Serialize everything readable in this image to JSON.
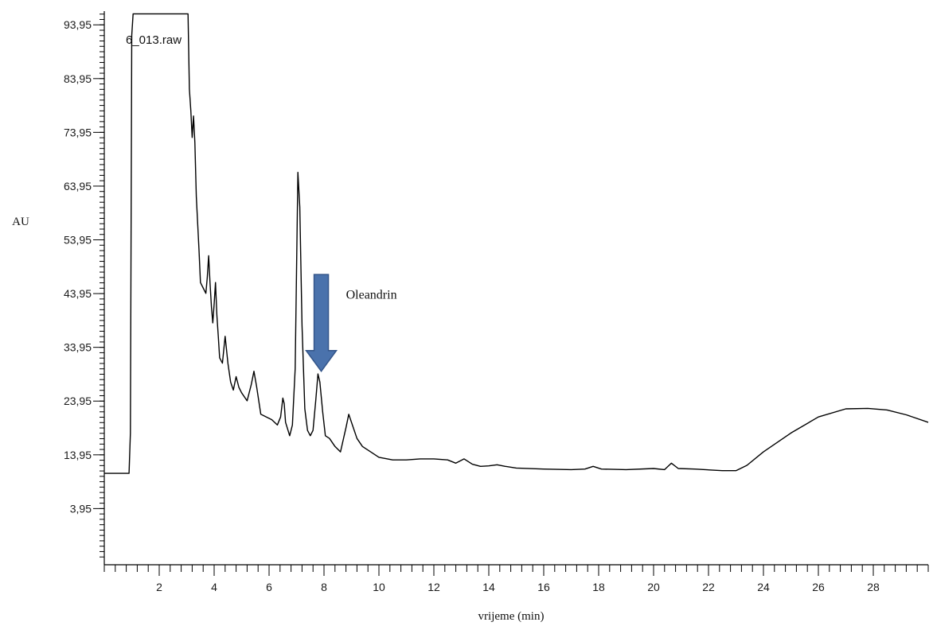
{
  "chart_data": {
    "type": "line",
    "trace_label": "6_013.raw",
    "xlabel": "vrijeme (min)",
    "ylabel": "AU",
    "xlim": [
      0,
      30
    ],
    "ylim": [
      -6.5,
      96.5
    ],
    "x_ticks": [
      2,
      4,
      6,
      8,
      10,
      12,
      14,
      16,
      18,
      20,
      22,
      24,
      26,
      28
    ],
    "x_tick_labels": [
      "2",
      "4",
      "6",
      "8",
      "10",
      "12",
      "14",
      "16",
      "18",
      "20",
      "22",
      "24",
      "26",
      "28"
    ],
    "y_ticks": [
      3.95,
      13.95,
      23.95,
      33.95,
      43.95,
      53.95,
      63.95,
      73.95,
      83.95,
      93.95
    ],
    "y_tick_labels": [
      "3,95",
      "13,95",
      "23,95",
      "33,95",
      "43,95",
      "53,95",
      "63,95",
      "73,95",
      "83,95",
      "93,95"
    ],
    "grid": false,
    "annotation": {
      "text": "Oleandrin",
      "arrow_from": [
        7.9,
        47.5
      ],
      "arrow_to": [
        7.9,
        29.5
      ],
      "text_at": [
        8.8,
        43.0
      ]
    },
    "series": [
      {
        "x": [
          0.0,
          0.9,
          0.95,
          1.0,
          1.05,
          3.05,
          3.1,
          3.15,
          3.2,
          3.25,
          3.3,
          3.35,
          3.4,
          3.45,
          3.5,
          3.6,
          3.7,
          3.75,
          3.8,
          3.85,
          3.9,
          3.95,
          4.0,
          4.05,
          4.1,
          4.15,
          4.2,
          4.3,
          4.4,
          4.5,
          4.6,
          4.7,
          4.8,
          4.9,
          5.0,
          5.2,
          5.35,
          5.45,
          5.55,
          5.7,
          5.9,
          6.1,
          6.3,
          6.42,
          6.5,
          6.55,
          6.6,
          6.75,
          6.85,
          6.95,
          7.05,
          7.12,
          7.2,
          7.3,
          7.4,
          7.5,
          7.6,
          7.7,
          7.78,
          7.85,
          7.95,
          8.05,
          8.2,
          8.4,
          8.6,
          8.8,
          8.9,
          9.0,
          9.2,
          9.4,
          9.7,
          10.0,
          10.5,
          11.0,
          11.5,
          12.0,
          12.5,
          12.8,
          13.1,
          13.4,
          13.7,
          14.0,
          14.3,
          14.6,
          15.0,
          16.0,
          17.0,
          17.5,
          17.8,
          18.1,
          19.0,
          20.0,
          20.4,
          20.65,
          20.9,
          21.5,
          22.5,
          23.0,
          23.4,
          24.0,
          25.0,
          26.0,
          27.0,
          27.8,
          28.5,
          29.2,
          30.0
        ],
        "y": [
          10.5,
          10.5,
          18.0,
          92.0,
          96.0,
          96.0,
          82.0,
          78.0,
          73.0,
          77.0,
          72.0,
          62.0,
          57.0,
          52.0,
          46.0,
          45.0,
          44.0,
          47.0,
          51.0,
          46.0,
          41.5,
          38.5,
          42.0,
          46.0,
          40.0,
          36.0,
          32.0,
          31.0,
          36.0,
          31.0,
          27.5,
          26.0,
          28.5,
          26.5,
          25.5,
          24.0,
          27.0,
          29.5,
          26.5,
          21.5,
          21.0,
          20.5,
          19.5,
          21.0,
          24.5,
          23.5,
          20.0,
          17.5,
          19.5,
          30.0,
          66.5,
          60.0,
          38.0,
          22.5,
          18.5,
          17.5,
          18.5,
          24.0,
          29.0,
          27.5,
          22.0,
          17.5,
          17.0,
          15.5,
          14.5,
          19.0,
          21.5,
          20.0,
          17.0,
          15.5,
          14.5,
          13.5,
          13.0,
          13.0,
          13.2,
          13.2,
          13.0,
          12.4,
          13.2,
          12.2,
          11.8,
          11.9,
          12.1,
          11.8,
          11.5,
          11.3,
          11.2,
          11.3,
          11.8,
          11.3,
          11.2,
          11.4,
          11.2,
          12.4,
          11.4,
          11.3,
          11.0,
          11.0,
          12.0,
          14.5,
          18.0,
          21.0,
          22.5,
          22.6,
          22.3,
          21.4,
          20.0
        ]
      }
    ]
  }
}
